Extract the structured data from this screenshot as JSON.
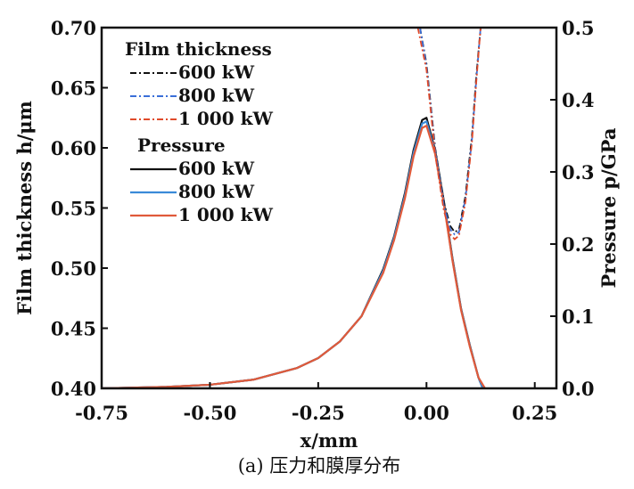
{
  "chart_data": {
    "type": "line",
    "xlabel": "x/mm",
    "ylabel_left": "Film thickness h/μm",
    "ylabel_right": "Pressure p/GPa",
    "caption": "(a) 压力和膜厚分布",
    "xlim": [
      -0.75,
      0.3
    ],
    "ylim_left": [
      0.4,
      0.7
    ],
    "ylim_right": [
      0.0,
      0.5
    ],
    "x_ticks": [
      "-0.75",
      "-0.50",
      "-0.25",
      "0.00",
      "0.25"
    ],
    "x_tick_values": [
      -0.75,
      -0.5,
      -0.25,
      0.0,
      0.25
    ],
    "y_left_ticks": [
      "0.40",
      "0.45",
      "0.50",
      "0.55",
      "0.60",
      "0.65",
      "0.70"
    ],
    "y_left_tick_values": [
      0.4,
      0.45,
      0.5,
      0.55,
      0.6,
      0.65,
      0.7
    ],
    "y_right_ticks": [
      "0.0",
      "0.1",
      "0.2",
      "0.3",
      "0.4",
      "0.5"
    ],
    "y_right_tick_values": [
      0.0,
      0.1,
      0.2,
      0.3,
      0.4,
      0.5
    ],
    "legend": {
      "position": "top-left",
      "film_header": "Film thickness",
      "pressure_header": "Pressure"
    },
    "film_thickness": [
      {
        "name": "600 kW",
        "color": "#111111",
        "dash": "dashdot",
        "x": [
          -0.015,
          0.0,
          0.02,
          0.04,
          0.055,
          0.065,
          0.075,
          0.09,
          0.105,
          0.115,
          0.125
        ],
        "y": [
          0.7,
          0.67,
          0.6,
          0.555,
          0.535,
          0.53,
          0.532,
          0.56,
          0.61,
          0.66,
          0.7
        ]
      },
      {
        "name": "800 kW",
        "color": "#3a6fd8",
        "dash": "dashdot",
        "x": [
          -0.015,
          0.0,
          0.02,
          0.04,
          0.055,
          0.065,
          0.075,
          0.09,
          0.105,
          0.115,
          0.125
        ],
        "y": [
          0.7,
          0.668,
          0.598,
          0.552,
          0.532,
          0.528,
          0.53,
          0.558,
          0.607,
          0.657,
          0.7
        ]
      },
      {
        "name": "1 000 kW",
        "color": "#e04a2a",
        "dash": "dashdot",
        "x": [
          -0.02,
          0.0,
          0.02,
          0.04,
          0.055,
          0.065,
          0.075,
          0.09,
          0.105,
          0.115,
          0.125
        ],
        "y": [
          0.7,
          0.665,
          0.595,
          0.548,
          0.528,
          0.524,
          0.527,
          0.555,
          0.605,
          0.655,
          0.7
        ]
      }
    ],
    "pressure": [
      {
        "name": "600 kW",
        "color": "#111111",
        "dash": "solid",
        "x": [
          -0.75,
          -0.6,
          -0.5,
          -0.4,
          -0.3,
          -0.25,
          -0.2,
          -0.15,
          -0.1,
          -0.075,
          -0.05,
          -0.03,
          -0.01,
          0.0,
          0.02,
          0.04,
          0.06,
          0.08,
          0.1,
          0.12,
          0.13
        ],
        "y": [
          0.0,
          0.002,
          0.005,
          0.012,
          0.028,
          0.042,
          0.065,
          0.1,
          0.165,
          0.21,
          0.27,
          0.33,
          0.372,
          0.375,
          0.33,
          0.26,
          0.18,
          0.11,
          0.06,
          0.015,
          0.0
        ]
      },
      {
        "name": "800 kW",
        "color": "#3a8ad8",
        "dash": "solid",
        "x": [
          -0.75,
          -0.6,
          -0.5,
          -0.4,
          -0.3,
          -0.25,
          -0.2,
          -0.15,
          -0.1,
          -0.075,
          -0.05,
          -0.03,
          -0.01,
          0.0,
          0.02,
          0.04,
          0.06,
          0.08,
          0.1,
          0.12,
          0.13
        ],
        "y": [
          0.0,
          0.002,
          0.005,
          0.012,
          0.028,
          0.042,
          0.065,
          0.1,
          0.163,
          0.208,
          0.267,
          0.326,
          0.367,
          0.37,
          0.327,
          0.258,
          0.178,
          0.109,
          0.059,
          0.015,
          0.0
        ]
      },
      {
        "name": "1 000 kW",
        "color": "#e05a3a",
        "dash": "solid",
        "x": [
          -0.75,
          -0.6,
          -0.5,
          -0.4,
          -0.3,
          -0.25,
          -0.2,
          -0.15,
          -0.1,
          -0.075,
          -0.05,
          -0.03,
          -0.01,
          0.0,
          0.02,
          0.04,
          0.06,
          0.08,
          0.1,
          0.12,
          0.135
        ],
        "y": [
          0.0,
          0.002,
          0.005,
          0.012,
          0.028,
          0.042,
          0.065,
          0.1,
          0.16,
          0.205,
          0.263,
          0.321,
          0.361,
          0.364,
          0.325,
          0.256,
          0.177,
          0.108,
          0.058,
          0.015,
          0.0
        ]
      }
    ]
  }
}
